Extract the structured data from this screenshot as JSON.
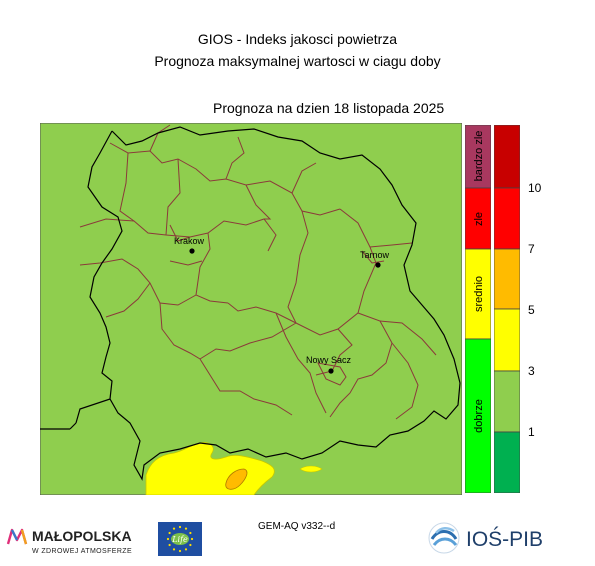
{
  "header": {
    "title_line1": "GIOS - Indeks jakosci powietrza",
    "title_line2": "Prognoza maksymalnej wartosci w ciagu doby",
    "forecast_date": "Prognoza na dzien  18 listopada 2025"
  },
  "map": {
    "cities": [
      {
        "name": "Krakow"
      },
      {
        "name": "Tarnow"
      },
      {
        "name": "Nowy Sacz"
      }
    ],
    "fill_color": "#8fce4e",
    "border_color": "#8b3a3a",
    "region_border_color": "#000000"
  },
  "legend": {
    "categories": [
      {
        "label": "bardzo zle",
        "color": "#a8385f"
      },
      {
        "label": "zle",
        "color": "#ff0000"
      },
      {
        "label": "srednio",
        "color": "#ffff00"
      },
      {
        "label": "dobrze",
        "color": "#00ff00"
      }
    ],
    "scale": [
      {
        "color": "#c80000"
      },
      {
        "color": "#ff0000"
      },
      {
        "color": "#ffbb00"
      },
      {
        "color": "#ffff00"
      },
      {
        "color": "#8fce4e"
      },
      {
        "color": "#00b050"
      }
    ],
    "ticks": [
      "10",
      "7",
      "5",
      "3",
      "1"
    ]
  },
  "footer": {
    "model": "GEM-AQ v332--d",
    "logo_left_title": "MAŁOPOLSKA",
    "logo_left_sub": "W ZDROWEJ ATMOSFERZE",
    "logo_eu_text": "Life",
    "logo_right_text": "IOŚ-PIB"
  }
}
